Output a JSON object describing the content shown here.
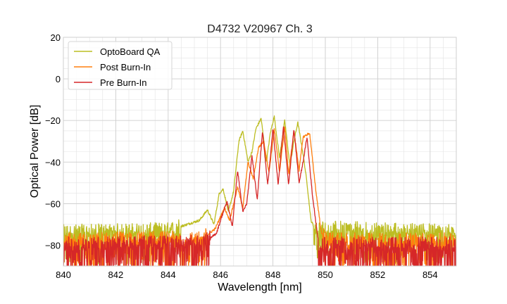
{
  "chart_data": {
    "type": "line",
    "title": "D4732 V20967 Ch. 3",
    "xlabel": "Wavelength [nm]",
    "ylabel": "Optical Power [dB]",
    "xlim": [
      840,
      855
    ],
    "ylim": [
      -90,
      20
    ],
    "xticks": [
      840,
      842,
      844,
      846,
      848,
      850,
      852,
      854
    ],
    "yticks": [
      20,
      0,
      -20,
      -40,
      -60,
      -80
    ],
    "x_tick_labels": [
      "840",
      "842",
      "844",
      "846",
      "848",
      "850",
      "852",
      "854"
    ],
    "y_tick_labels": [
      "20",
      "0",
      "−20",
      "−40",
      "−60",
      "−80"
    ],
    "grid": true,
    "legend_position": "top-left",
    "series": [
      {
        "name": "OptoBoard QA",
        "color": "#bcbd22",
        "noise_floor_db": -74,
        "points": [
          [
            840,
            -74
          ],
          [
            844,
            -73
          ],
          [
            845.2,
            -68
          ],
          [
            845.5,
            -63
          ],
          [
            845.75,
            -70
          ],
          [
            845.95,
            -55
          ],
          [
            846.1,
            -53
          ],
          [
            846.3,
            -64
          ],
          [
            846.5,
            -54
          ],
          [
            846.7,
            -30
          ],
          [
            846.85,
            -25
          ],
          [
            847.05,
            -40
          ],
          [
            847.2,
            -35
          ],
          [
            847.35,
            -24
          ],
          [
            847.55,
            -19
          ],
          [
            847.75,
            -40
          ],
          [
            847.9,
            -26
          ],
          [
            848.05,
            -18
          ],
          [
            848.25,
            -38
          ],
          [
            848.45,
            -20
          ],
          [
            848.65,
            -42
          ],
          [
            848.8,
            -30
          ],
          [
            848.95,
            -21
          ],
          [
            849.15,
            -36
          ],
          [
            849.3,
            -50
          ],
          [
            849.45,
            -68
          ],
          [
            849.6,
            -72
          ],
          [
            855,
            -74
          ]
        ]
      },
      {
        "name": "Post Burn-In",
        "color": "#ff7f0e",
        "noise_floor_db": -78,
        "points": [
          [
            840,
            -78
          ],
          [
            845.3,
            -77
          ],
          [
            845.8,
            -72
          ],
          [
            846.15,
            -62
          ],
          [
            846.35,
            -68
          ],
          [
            846.65,
            -52
          ],
          [
            846.85,
            -62
          ],
          [
            847.05,
            -40
          ],
          [
            847.25,
            -48
          ],
          [
            847.45,
            -33
          ],
          [
            847.65,
            -30
          ],
          [
            847.85,
            -45
          ],
          [
            848.05,
            -24
          ],
          [
            848.25,
            -45
          ],
          [
            848.45,
            -23
          ],
          [
            848.6,
            -46
          ],
          [
            848.8,
            -25
          ],
          [
            849.0,
            -44
          ],
          [
            849.15,
            -28
          ],
          [
            849.4,
            -26
          ],
          [
            849.65,
            -55
          ],
          [
            849.85,
            -74
          ],
          [
            850.05,
            -78
          ],
          [
            855,
            -78
          ]
        ]
      },
      {
        "name": "Pre Burn-In",
        "color": "#d62728",
        "noise_floor_db": -80,
        "points": [
          [
            840,
            -80
          ],
          [
            845.3,
            -79
          ],
          [
            845.6,
            -77
          ],
          [
            845.85,
            -74
          ],
          [
            846.05,
            -66
          ],
          [
            846.25,
            -59
          ],
          [
            846.45,
            -71
          ],
          [
            846.65,
            -44
          ],
          [
            846.85,
            -64
          ],
          [
            847.0,
            -60
          ],
          [
            847.2,
            -37
          ],
          [
            847.4,
            -58
          ],
          [
            847.6,
            -25
          ],
          [
            847.8,
            -51
          ],
          [
            848.0,
            -24
          ],
          [
            848.2,
            -51
          ],
          [
            848.4,
            -23
          ],
          [
            848.6,
            -51
          ],
          [
            848.8,
            -24
          ],
          [
            849.0,
            -50
          ],
          [
            849.15,
            -40
          ],
          [
            849.3,
            -28
          ],
          [
            849.5,
            -55
          ],
          [
            849.75,
            -80
          ],
          [
            855,
            -80
          ]
        ]
      }
    ]
  }
}
